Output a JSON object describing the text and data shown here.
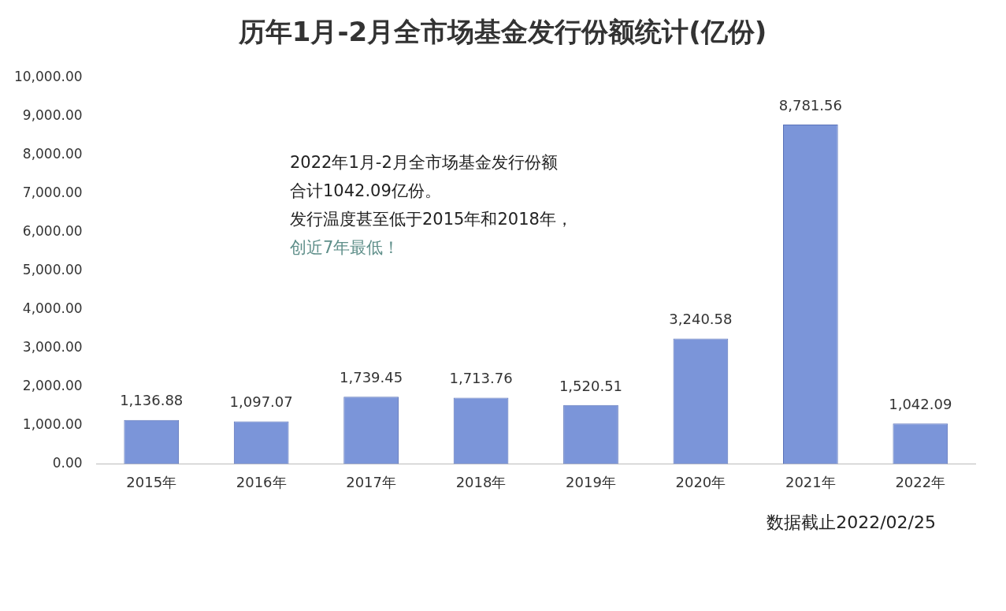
{
  "chart_data": {
    "type": "bar",
    "title": "历年1月-2月全市场基金发行份额统计(亿份)",
    "categories": [
      "2015年",
      "2016年",
      "2017年",
      "2018年",
      "2019年",
      "2020年",
      "2021年",
      "2022年"
    ],
    "values": [
      1136.88,
      1097.07,
      1739.45,
      1713.76,
      1520.51,
      3240.58,
      8781.56,
      1042.09
    ],
    "value_labels": [
      "1,136.88",
      "1,097.07",
      "1,739.45",
      "1,713.76",
      "1,520.51",
      "3,240.58",
      "8,781.56",
      "1,042.09"
    ],
    "color": "#7b95d9",
    "ylim": [
      0,
      10000
    ],
    "yticks": [
      {
        "value": 0,
        "label": "0.00"
      },
      {
        "value": 1000,
        "label": "1,000.00"
      },
      {
        "value": 2000,
        "label": "2,000.00"
      },
      {
        "value": 3000,
        "label": "3,000.00"
      },
      {
        "value": 4000,
        "label": "4,000.00"
      },
      {
        "value": 5000,
        "label": "5,000.00"
      },
      {
        "value": 6000,
        "label": "6,000.00"
      },
      {
        "value": 7000,
        "label": "7,000.00"
      },
      {
        "value": 8000,
        "label": "8,000.00"
      },
      {
        "value": 9000,
        "label": "9,000.00"
      },
      {
        "value": 10000,
        "label": "10,000.00"
      }
    ],
    "grid": false,
    "annotations": [
      "2022年1月-2月全市场基金发行份额",
      "合计1042.09亿份。",
      "发行温度甚至低于2015年和2018年，",
      "创近7年最低！",
      "数据截止2022/02/25"
    ]
  }
}
